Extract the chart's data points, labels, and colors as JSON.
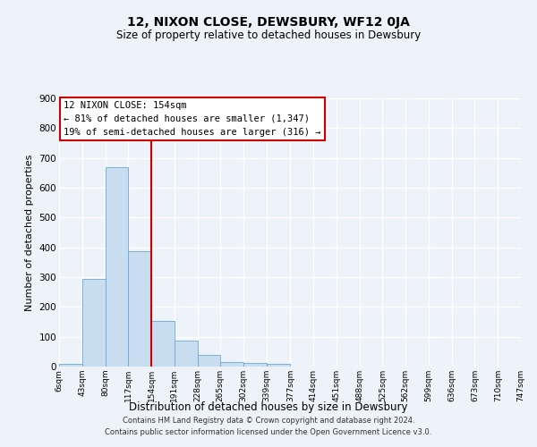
{
  "title": "12, NIXON CLOSE, DEWSBURY, WF12 0JA",
  "subtitle": "Size of property relative to detached houses in Dewsbury",
  "xlabel": "Distribution of detached houses by size in Dewsbury",
  "ylabel": "Number of detached properties",
  "bar_heights": [
    8,
    293,
    670,
    388,
    153,
    87,
    40,
    15,
    12,
    10,
    0,
    0,
    0,
    0,
    0,
    0,
    0,
    0,
    0,
    0
  ],
  "bin_edges": [
    6,
    43,
    80,
    117,
    154,
    191,
    228,
    265,
    302,
    339,
    377,
    414,
    451,
    488,
    525,
    562,
    599,
    636,
    673,
    710,
    747
  ],
  "tick_labels": [
    "6sqm",
    "43sqm",
    "80sqm",
    "117sqm",
    "154sqm",
    "191sqm",
    "228sqm",
    "265sqm",
    "302sqm",
    "339sqm",
    "377sqm",
    "414sqm",
    "451sqm",
    "488sqm",
    "525sqm",
    "562sqm",
    "599sqm",
    "636sqm",
    "673sqm",
    "710sqm",
    "747sqm"
  ],
  "bar_color": "#c9ddf0",
  "bar_edge_color": "#6aaad4",
  "vline_x": 154,
  "vline_color": "#cc0000",
  "annotation_title": "12 NIXON CLOSE: 154sqm",
  "annotation_line1": "← 81% of detached houses are smaller (1,347)",
  "annotation_line2": "19% of semi-detached houses are larger (316) →",
  "annotation_box_edge_color": "#cc0000",
  "ylim": [
    0,
    900
  ],
  "yticks": [
    0,
    100,
    200,
    300,
    400,
    500,
    600,
    700,
    800,
    900
  ],
  "background_color": "#eef2f9",
  "plot_bg_color": "#eef2f9",
  "grid_color": "#ffffff",
  "footer1": "Contains HM Land Registry data © Crown copyright and database right 2024.",
  "footer2": "Contains public sector information licensed under the Open Government Licence v3.0."
}
